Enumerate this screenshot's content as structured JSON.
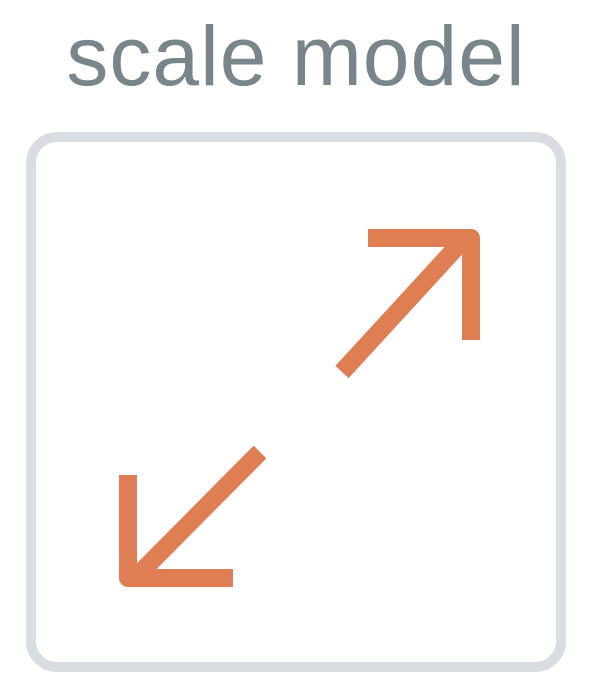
{
  "title": "scale model",
  "icon": {
    "name": "scale-model-icon",
    "frame_color": "#d9dde2",
    "arrow_color": "#de7e52"
  }
}
